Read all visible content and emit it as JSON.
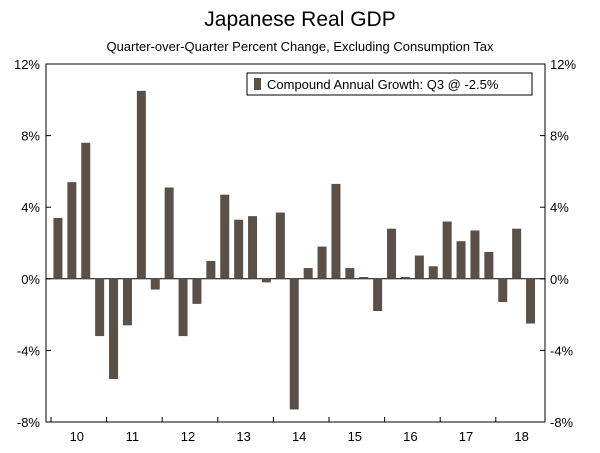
{
  "chart_data": {
    "type": "bar",
    "title": "Japanese Real GDP",
    "subtitle": "Quarter-over-Quarter Percent Change, Excluding Consumption Tax",
    "xlabel": "",
    "ylabel": "",
    "ylim": [
      -8,
      12
    ],
    "yticks": [
      "12%",
      "8%",
      "4%",
      "0%",
      "-4%",
      "-8%"
    ],
    "ytick_values": [
      12,
      8,
      4,
      0,
      -4,
      -8
    ],
    "xticks": [
      "10",
      "11",
      "12",
      "13",
      "14",
      "15",
      "16",
      "17",
      "18"
    ],
    "legend_text": "Compound Annual Growth: Q3 @ -2.5%",
    "legend_position": "top-right",
    "bar_color": "#5a5048",
    "grid": false,
    "start_year": 2010,
    "quarters": [
      "2010 Q1",
      "2010 Q2",
      "2010 Q3",
      "2010 Q4",
      "2011 Q1",
      "2011 Q2",
      "2011 Q3",
      "2011 Q4",
      "2012 Q1",
      "2012 Q2",
      "2012 Q3",
      "2012 Q4",
      "2013 Q1",
      "2013 Q2",
      "2013 Q3",
      "2013 Q4",
      "2014 Q1",
      "2014 Q2",
      "2014 Q3",
      "2014 Q4",
      "2015 Q1",
      "2015 Q2",
      "2015 Q3",
      "2015 Q4",
      "2016 Q1",
      "2016 Q2",
      "2016 Q3",
      "2016 Q4",
      "2017 Q1",
      "2017 Q2",
      "2017 Q3",
      "2017 Q4",
      "2018 Q1",
      "2018 Q2",
      "2018 Q3"
    ],
    "values": [
      3.4,
      5.4,
      7.6,
      -3.2,
      -5.6,
      -2.6,
      10.5,
      -0.6,
      5.1,
      -3.2,
      -1.4,
      1.0,
      4.7,
      3.3,
      3.5,
      -0.2,
      3.7,
      -7.3,
      0.6,
      1.8,
      5.3,
      0.6,
      0.1,
      -1.8,
      2.8,
      0.1,
      1.3,
      0.7,
      3.2,
      2.1,
      2.7,
      1.5,
      -1.3,
      2.8,
      -2.5
    ]
  }
}
